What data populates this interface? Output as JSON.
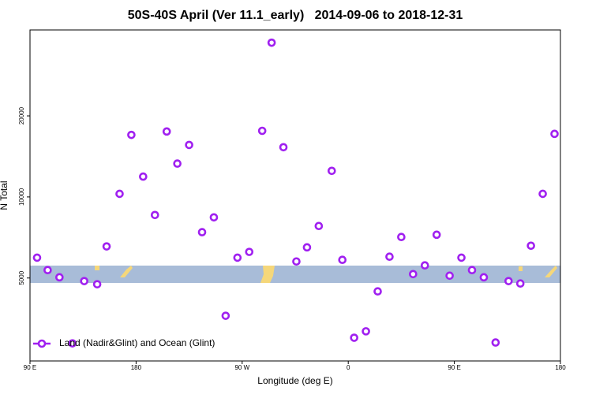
{
  "chart_data": {
    "type": "scatter",
    "title": "50S-40S April (Ver 11.1_early)   2014-09-06 to 2018-12-31",
    "x_label": "Longitude (deg E)",
    "y_label": "N Total",
    "xlim": [
      90,
      540
    ],
    "xticks": [
      {
        "value": 90,
        "label": "90 E"
      },
      {
        "value": 180,
        "label": "180"
      },
      {
        "value": 270,
        "label": "90 W"
      },
      {
        "value": 360,
        "label": "0"
      },
      {
        "value": 450,
        "label": "90 E"
      },
      {
        "value": 540,
        "label": "180"
      }
    ],
    "ylim": [
      2460,
      41700
    ],
    "y_scale": "log",
    "yticks": [
      5000,
      10000,
      20000
    ],
    "legend_location": "bottom left",
    "series": [
      {
        "name": "Land (Nadir&Glint) and Ocean (Glint)",
        "color": "#a020f0",
        "x": [
          96,
          105,
          115,
          126,
          136,
          147,
          155,
          166,
          176,
          186,
          196,
          206,
          215,
          225,
          236,
          246,
          256,
          266,
          276,
          287,
          295,
          305,
          316,
          325,
          335,
          346,
          355,
          365,
          375,
          385,
          395,
          405,
          415,
          425,
          435,
          446,
          456,
          465,
          475,
          485,
          496,
          506,
          515,
          525,
          535
        ],
        "values": [
          5950,
          5350,
          5030,
          2860,
          4870,
          4740,
          6550,
          10270,
          17000,
          11900,
          8570,
          17500,
          13300,
          15600,
          7400,
          8400,
          3620,
          5950,
          6250,
          17600,
          37400,
          15300,
          5760,
          6500,
          7800,
          12500,
          5840,
          3000,
          3170,
          4460,
          6000,
          7100,
          5170,
          5570,
          7240,
          5100,
          5950,
          5350,
          5030,
          2880,
          4870,
          4770,
          6590,
          10270,
          17150
        ]
      }
    ]
  }
}
